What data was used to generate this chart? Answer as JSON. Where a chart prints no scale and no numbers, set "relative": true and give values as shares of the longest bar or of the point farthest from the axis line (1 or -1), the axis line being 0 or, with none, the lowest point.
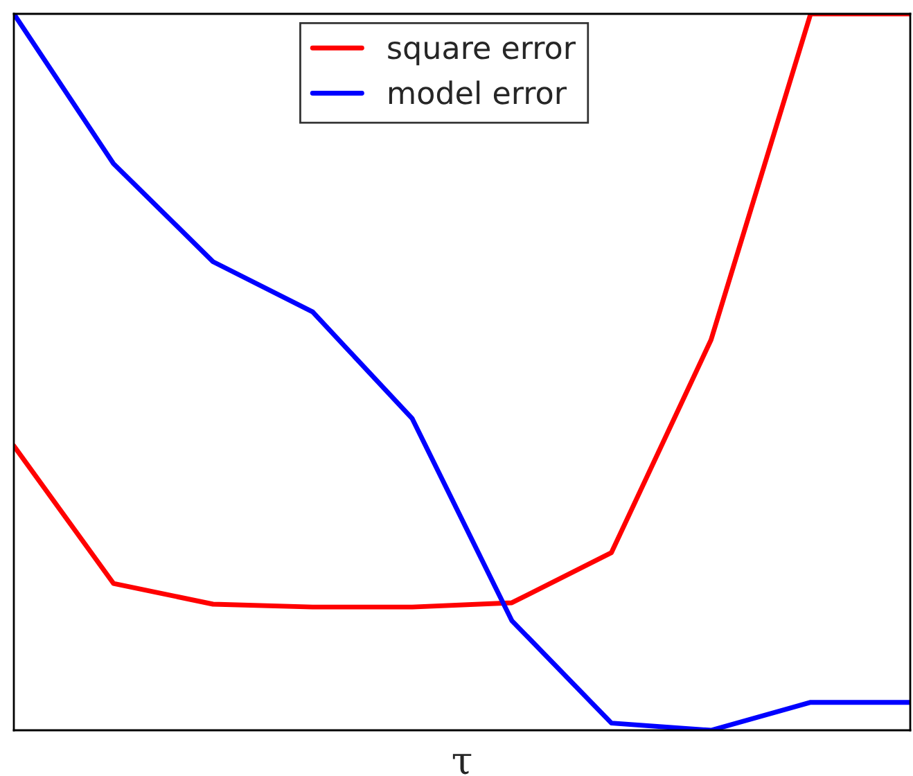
{
  "chart_data": {
    "type": "line",
    "relative": true,
    "xlabel": "τ",
    "categories": [
      null,
      null,
      null,
      null,
      null,
      null,
      null,
      null,
      null,
      null
    ],
    "series": [
      {
        "name": "square error",
        "color": "#ff0000",
        "values": [
          0.397,
          0.205,
          0.176,
          0.172,
          0.172,
          0.178,
          0.248,
          0.545,
          1,
          1
        ]
      },
      {
        "name": "model error",
        "color": "#0000ff",
        "values": [
          1,
          0.791,
          0.654,
          0.584,
          0.435,
          0.153,
          0.01,
          0,
          0.039,
          0.039
        ]
      }
    ],
    "legend": "top",
    "grid": false,
    "marker": "none",
    "line_style": "solid"
  }
}
